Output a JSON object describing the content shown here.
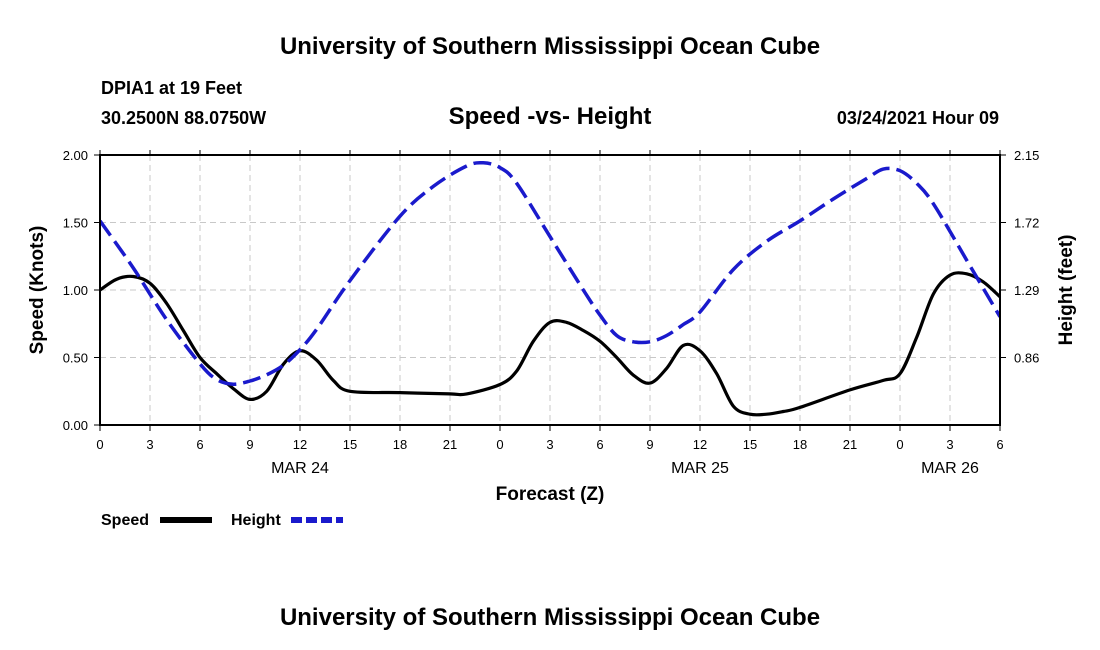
{
  "header": {
    "title": "University of Southern Mississippi Ocean Cube",
    "station": "DPIA1 at 19 Feet",
    "location": "30.2500N 88.0750W",
    "subtitle": "Speed -vs- Height",
    "datetime": "03/24/2021 Hour 09"
  },
  "footer": {
    "title": "University of Southern Mississippi Ocean Cube"
  },
  "legend": {
    "speed_label": "Speed",
    "height_label": "Height"
  },
  "chart_data": {
    "type": "line",
    "title": "Speed -vs- Height",
    "xlabel": "Forecast (Z)",
    "ylabel": "Speed (Knots)",
    "y2label": "Height (feet)",
    "xlim": [
      0,
      54
    ],
    "ylim": [
      0,
      2.0
    ],
    "y2lim": [
      0.43,
      2.15
    ],
    "grid": true,
    "legend_position": "bottom-left",
    "x_ticks": [
      0,
      3,
      6,
      9,
      12,
      15,
      18,
      21,
      24,
      27,
      30,
      33,
      36,
      39,
      42,
      45,
      48,
      51,
      54
    ],
    "x_tick_labels": [
      "0",
      "3",
      "6",
      "9",
      "12",
      "15",
      "18",
      "21",
      "0",
      "3",
      "6",
      "9",
      "12",
      "15",
      "18",
      "21",
      "0",
      "3",
      "6"
    ],
    "y_ticks": [
      0,
      0.5,
      1.0,
      1.5,
      2.0
    ],
    "y_tick_labels": [
      "0.00",
      "0.50",
      "1.00",
      "1.50",
      "2.00"
    ],
    "y2_ticks": [
      0.86,
      1.29,
      1.72,
      2.15
    ],
    "y2_tick_labels": [
      "0.86",
      "1.29",
      "1.72",
      "2.15"
    ],
    "date_labels": [
      {
        "x": 12,
        "label": "MAR 24"
      },
      {
        "x": 36,
        "label": "MAR 25"
      },
      {
        "x": 51,
        "label": "MAR 26"
      }
    ],
    "colors": {
      "speed": "#000000",
      "height": "#1a1acc"
    },
    "series": [
      {
        "name": "Speed",
        "axis": "left",
        "style": "solid",
        "x": [
          0,
          1,
          2,
          3,
          4,
          5,
          6,
          7,
          8,
          9,
          10,
          11,
          12,
          13,
          14,
          15,
          18,
          21,
          22,
          24,
          25,
          26,
          27,
          28,
          29,
          30,
          31,
          32,
          33,
          34,
          35,
          36,
          37,
          38,
          39,
          40,
          41,
          42,
          45,
          47,
          48,
          49,
          50,
          51,
          52,
          53,
          54
        ],
        "values": [
          1.0,
          1.08,
          1.1,
          1.05,
          0.9,
          0.7,
          0.5,
          0.38,
          0.27,
          0.19,
          0.25,
          0.45,
          0.55,
          0.48,
          0.33,
          0.25,
          0.24,
          0.23,
          0.23,
          0.3,
          0.4,
          0.62,
          0.76,
          0.76,
          0.7,
          0.62,
          0.5,
          0.37,
          0.31,
          0.42,
          0.59,
          0.55,
          0.38,
          0.14,
          0.08,
          0.08,
          0.1,
          0.13,
          0.26,
          0.33,
          0.38,
          0.65,
          0.97,
          1.11,
          1.12,
          1.06,
          0.95
        ]
      },
      {
        "name": "Height",
        "axis": "right",
        "style": "dashed",
        "x": [
          0,
          2,
          4,
          6,
          7,
          8,
          9,
          10,
          11,
          12,
          13,
          15,
          18,
          20,
          22,
          23,
          24,
          25,
          27,
          29,
          30,
          31,
          32,
          33,
          34,
          35,
          36,
          38,
          40,
          42,
          44,
          46,
          47,
          48,
          49,
          50,
          52,
          54
        ],
        "values": [
          1.73,
          1.43,
          1.1,
          0.82,
          0.72,
          0.69,
          0.71,
          0.75,
          0.81,
          0.91,
          1.04,
          1.35,
          1.76,
          1.95,
          2.08,
          2.1,
          2.07,
          1.97,
          1.63,
          1.29,
          1.13,
          1.0,
          0.96,
          0.96,
          1.0,
          1.07,
          1.15,
          1.42,
          1.6,
          1.73,
          1.87,
          2.0,
          2.06,
          2.05,
          1.97,
          1.84,
          1.48,
          1.12
        ]
      }
    ]
  }
}
